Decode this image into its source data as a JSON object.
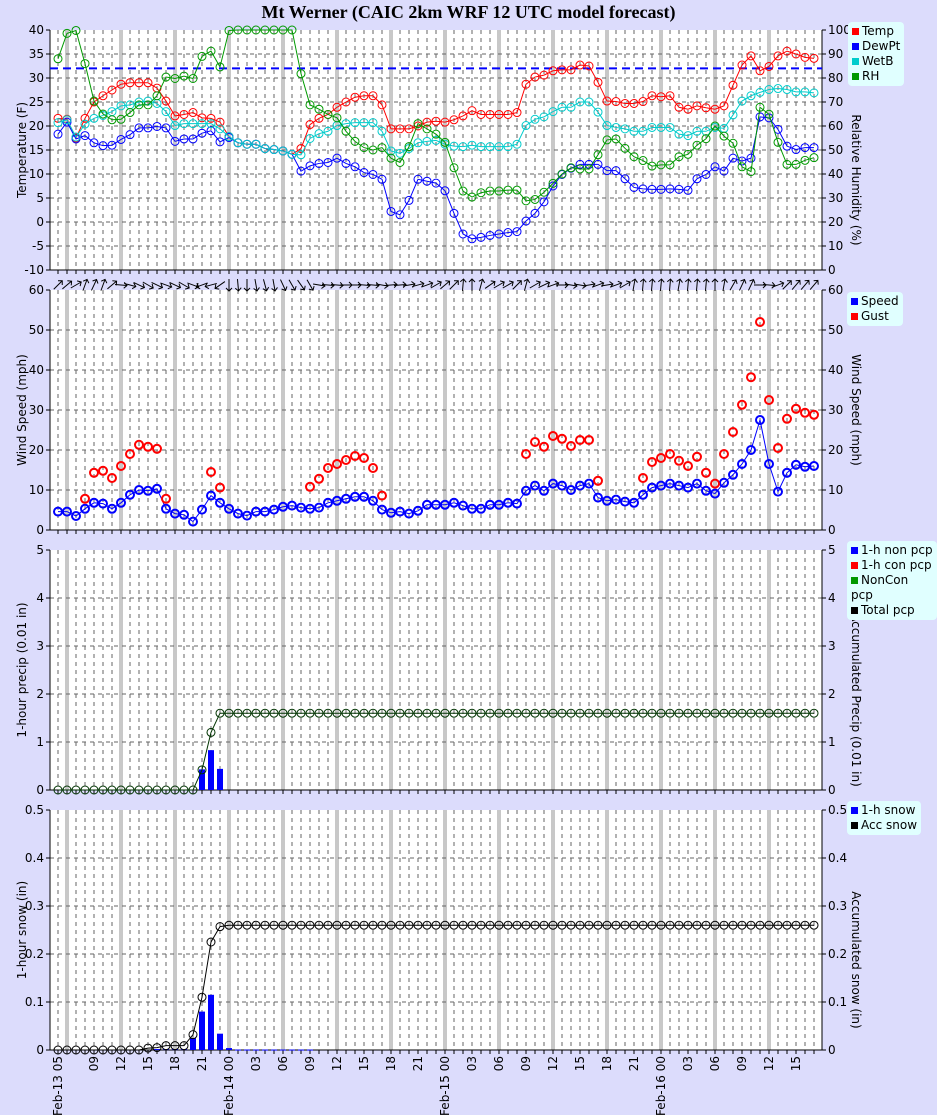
{
  "title": "Mt Werner (CAIC 2km WRF 12 UTC model forecast)",
  "colors": {
    "temp": "#ff0000",
    "dewpt": "#0000ff",
    "wetb": "#00cccc",
    "rh": "#009900",
    "speed": "#0000ff",
    "gust": "#ff0000",
    "non_pcp": "#0000ff",
    "con_pcp": "#ff0000",
    "noncon_pcp": "#009900",
    "total_pcp": "#000000",
    "snow": "#0000ff",
    "acc_snow": "#000000",
    "freezing_line": "#0000ff"
  },
  "x_tick_labels": [
    "Feb-13 05",
    "09",
    "12",
    "15",
    "18",
    "21",
    "Feb-14 00",
    "03",
    "06",
    "09",
    "12",
    "15",
    "18",
    "21",
    "Feb-15 00",
    "03",
    "06",
    "09",
    "12",
    "15",
    "18",
    "21",
    "Feb-16 00",
    "03",
    "06",
    "09",
    "12",
    "15"
  ],
  "chart_data": [
    {
      "type": "line",
      "ylabel": "Temperature (F)",
      "ylabel_right": "Relative Humidity (%)",
      "ylim": [
        -10,
        40
      ],
      "ylim_right": [
        0,
        100
      ],
      "yticks": [
        "40",
        "35",
        "30",
        "25",
        "20",
        "15",
        "10",
        "5",
        "0",
        "-5",
        "-10"
      ],
      "yticks_right": [
        "100",
        "90",
        "80",
        "70",
        "60",
        "50",
        "40",
        "30",
        "20",
        "10",
        "0"
      ],
      "freezing_line_F": 32,
      "legend": [
        "Temp",
        "DewPt",
        "WetB",
        "RH"
      ],
      "legend_position": "top-right outside",
      "series": [
        {
          "name": "Temp",
          "axis": "left",
          "values": [
            21.6,
            21.4,
            17.5,
            21.6,
            25,
            26.3,
            27.5,
            28.7,
            29,
            29,
            29,
            27.9,
            25.2,
            22.1,
            22.4,
            22.8,
            21.7,
            21.6,
            20.8,
            17.8,
            16.5,
            16.2,
            16.2,
            15.3,
            15.1,
            14.8,
            14.1,
            15.3,
            20.3,
            21.6,
            22.4,
            23.9,
            25,
            26,
            26.3,
            26.3,
            24.4,
            19.4,
            19.4,
            19.4,
            20,
            20.8,
            21,
            20.8,
            21.3,
            22.1,
            23.2,
            22.4,
            22.4,
            22.4,
            22.4,
            22.8,
            28.7,
            30.2,
            30.6,
            31.5,
            31.7,
            31.7,
            32.7,
            32.5,
            29.1,
            25.2,
            25.1,
            24.7,
            24.7,
            25.1,
            26.3,
            26.1,
            26.3,
            23.9,
            23.5,
            24.2,
            23.8,
            23.5,
            24.2,
            28.5,
            32.7,
            34.6,
            31.5,
            32.4,
            34.6,
            35.6,
            35,
            34.3,
            34.1
          ]
        },
        {
          "name": "DewPt",
          "axis": "left",
          "values": [
            18.3,
            20.8,
            17.3,
            18,
            16.5,
            15.9,
            16,
            17.2,
            18.2,
            19.6,
            19.6,
            19.9,
            19.6,
            16.8,
            17.3,
            17.3,
            18.5,
            19,
            16.7,
            17.6,
            16.5,
            16.2,
            16.2,
            15.3,
            15.1,
            14.8,
            14.1,
            10.6,
            11.7,
            12.2,
            12.4,
            13.3,
            12.2,
            11.5,
            10.3,
            9.9,
            8.9,
            2.2,
            1.5,
            4.5,
            8.9,
            8.5,
            8.1,
            6.5,
            1.8,
            -2.5,
            -3.5,
            -3.2,
            -2.8,
            -2.5,
            -2.2,
            -2,
            0.2,
            1.8,
            4.2,
            7.5,
            9.9,
            11.2,
            12,
            12,
            12,
            10.7,
            10.7,
            9,
            7.2,
            6.9,
            6.8,
            6.8,
            6.9,
            6.8,
            6.6,
            9,
            9.9,
            11.5,
            10.6,
            13.3,
            12.7,
            13.3,
            21.9,
            21.7,
            19.3,
            15.8,
            15.1,
            15.5,
            15.5
          ]
        },
        {
          "name": "WetB",
          "axis": "left",
          "values": [
            20.7,
            21.3,
            17.7,
            20.4,
            21.6,
            22.2,
            23,
            24.2,
            24.4,
            25,
            25.2,
            24.7,
            23,
            20.1,
            20.5,
            20.5,
            20.5,
            20.5,
            19.4,
            17.8,
            16.5,
            16.2,
            16.2,
            15.3,
            15.1,
            14.8,
            14.1,
            14,
            17.4,
            18.4,
            18.9,
            20.1,
            20.5,
            20.7,
            20.7,
            20.7,
            18.9,
            14.8,
            14.3,
            15.3,
            16.5,
            16.8,
            17,
            16.2,
            15.8,
            15.7,
            16,
            15.7,
            15.7,
            15.7,
            15.7,
            16.2,
            20.1,
            21.4,
            21.9,
            23,
            23.9,
            23.9,
            25,
            25,
            22.9,
            20.1,
            19.7,
            19.4,
            18.9,
            18.9,
            19.7,
            19.7,
            19.7,
            18.3,
            18,
            18.9,
            18.9,
            19.7,
            19.5,
            22.3,
            25.2,
            26.3,
            27,
            27.6,
            27.8,
            27.6,
            27.1,
            27.1,
            26.9
          ]
        },
        {
          "name": "RH",
          "axis": "right",
          "values": [
            88,
            98.6,
            99.8,
            86,
            70.4,
            65,
            62.6,
            62.8,
            65.6,
            68.8,
            68.8,
            72.6,
            80.4,
            79.8,
            80.8,
            79.8,
            89,
            91.2,
            84.6,
            99.8,
            100,
            100,
            100,
            100,
            100,
            100,
            100,
            81.8,
            68.8,
            67,
            64.8,
            63.4,
            57.8,
            53.6,
            51,
            50,
            51,
            46.6,
            44.8,
            51.4,
            61,
            58.8,
            56.6,
            53.2,
            42.6,
            32.9,
            30.4,
            32.2,
            32.9,
            32.9,
            33.3,
            33.3,
            28.8,
            29.4,
            32.4,
            36.1,
            40,
            42.6,
            42.1,
            42.1,
            48,
            54.2,
            54.6,
            50.7,
            47.2,
            45.6,
            43.3,
            43.8,
            43.8,
            47.2,
            48.2,
            52,
            54.7,
            60,
            55.8,
            52.8,
            43,
            41,
            67.8,
            64.9,
            53.2,
            44,
            44,
            45.7,
            46.8
          ]
        }
      ]
    },
    {
      "type": "scatter",
      "ylabel": "Wind Speed (mph)",
      "ylabel_right": "Wind Speed (mph)",
      "ylim": [
        0,
        60
      ],
      "yticks": [
        "60",
        "50",
        "40",
        "30",
        "20",
        "10",
        "0"
      ],
      "legend": [
        "Speed",
        "Gust"
      ],
      "legend_position": "top-right outside",
      "wind_direction_arrows_deg": [
        45,
        50,
        60,
        20,
        25,
        20,
        50,
        95,
        105,
        115,
        120,
        115,
        110,
        115,
        120,
        110,
        250,
        255,
        235,
        180,
        175,
        180,
        170,
        165,
        170,
        155,
        150,
        145,
        150,
        100,
        95,
        95,
        90,
        90,
        95,
        95,
        100,
        85,
        85,
        80,
        75,
        70,
        60,
        50,
        45,
        5,
        0,
        15,
        55,
        60,
        60,
        45,
        15,
        60,
        65,
        70,
        90,
        100,
        100,
        80,
        70,
        80,
        70,
        60,
        10,
        5,
        5,
        5,
        5,
        10,
        5,
        5,
        5,
        0,
        10,
        30,
        25,
        25,
        90,
        95,
        70,
        45,
        40,
        40,
        40
      ],
      "series": [
        {
          "name": "Speed",
          "values": [
            4.6,
            4.6,
            3.5,
            5.3,
            6.8,
            6.6,
            5.3,
            6.8,
            8.8,
            10,
            9.8,
            10.3,
            5.3,
            4.1,
            3.8,
            2.1,
            5.1,
            8.6,
            6.8,
            5.3,
            4.1,
            3.6,
            4.6,
            4.6,
            5.1,
            5.8,
            6.1,
            5.6,
            5.3,
            5.6,
            6.8,
            7.3,
            7.8,
            8.3,
            8.3,
            7.3,
            5.1,
            4.3,
            4.6,
            4.1,
            4.8,
            6.3,
            6.3,
            6.3,
            6.8,
            6.1,
            5.3,
            5.3,
            6.3,
            6.3,
            6.8,
            6.6,
            9.8,
            11.1,
            9.8,
            11.6,
            11.1,
            10,
            11.1,
            11.6,
            8.1,
            7.3,
            7.6,
            7.1,
            6.8,
            8.8,
            10.6,
            11.1,
            11.6,
            11.1,
            10.6,
            11.6,
            9.8,
            9.1,
            11.8,
            13.8,
            16.5,
            20,
            27.5,
            16.5,
            9.6,
            14.3,
            16.3,
            15.8,
            16
          ]
        },
        {
          "name": "Gust",
          "values": [
            null,
            null,
            null,
            7.8,
            14.3,
            14.8,
            13,
            16,
            19,
            21.3,
            20.8,
            20.3,
            7.8,
            null,
            null,
            null,
            null,
            14.5,
            10.6,
            null,
            null,
            null,
            null,
            null,
            null,
            null,
            null,
            null,
            10.8,
            12.8,
            15.5,
            16.5,
            17.5,
            18.5,
            18,
            15.5,
            8.6,
            null,
            null,
            null,
            null,
            null,
            null,
            null,
            null,
            null,
            null,
            null,
            null,
            null,
            null,
            null,
            19,
            22,
            20.8,
            23.5,
            22.8,
            21,
            22.5,
            22.5,
            12.3,
            null,
            null,
            null,
            null,
            13,
            17,
            18,
            19,
            17.3,
            16,
            18.3,
            14.3,
            11.6,
            19,
            24.5,
            31.3,
            38.2,
            52,
            32.5,
            20.5,
            27.8,
            30.3,
            29.3,
            28.8
          ]
        }
      ]
    },
    {
      "type": "bar",
      "ylabel": "1-hour precip (0.01 in)",
      "ylabel_right": "Accumulated Precip (0.01 in)",
      "ylim": [
        0,
        5
      ],
      "yticks": [
        "5",
        "4",
        "3",
        "2",
        "1",
        "0"
      ],
      "legend": [
        "1-h non pcp",
        "1-h con pcp",
        "NonCon pcp",
        "Total pcp"
      ],
      "legend_position": "top-right outside",
      "series": [
        {
          "name": "1-h non pcp",
          "values": [
            0,
            0,
            0,
            0,
            0,
            0,
            0,
            0,
            0,
            0,
            0,
            0,
            0,
            0,
            0,
            0,
            0.43,
            0.83,
            0.44,
            0,
            0,
            0,
            0,
            0,
            0,
            0,
            0,
            0,
            0,
            0,
            0,
            0,
            0,
            0,
            0,
            0,
            0,
            0,
            0,
            0,
            0,
            0,
            0,
            0,
            0,
            0,
            0,
            0,
            0,
            0,
            0,
            0,
            0,
            0,
            0,
            0,
            0,
            0,
            0,
            0,
            0,
            0,
            0,
            0,
            0,
            0,
            0,
            0,
            0,
            0,
            0,
            0,
            0,
            0,
            0,
            0,
            0,
            0,
            0,
            0,
            0,
            0,
            0,
            0,
            0
          ]
        },
        {
          "name": "Total pcp",
          "values": [
            0,
            0,
            0,
            0,
            0,
            0,
            0,
            0,
            0,
            0,
            0,
            0,
            0,
            0,
            0,
            0,
            0.42,
            1.2,
            1.6,
            1.6,
            1.6,
            1.6,
            1.6,
            1.6,
            1.6,
            1.6,
            1.6,
            1.6,
            1.6,
            1.6,
            1.6,
            1.6,
            1.6,
            1.6,
            1.6,
            1.6,
            1.6,
            1.6,
            1.6,
            1.6,
            1.6,
            1.6,
            1.6,
            1.6,
            1.6,
            1.6,
            1.6,
            1.6,
            1.6,
            1.6,
            1.6,
            1.6,
            1.6,
            1.6,
            1.6,
            1.6,
            1.6,
            1.6,
            1.6,
            1.6,
            1.6,
            1.6,
            1.6,
            1.6,
            1.6,
            1.6,
            1.6,
            1.6,
            1.6,
            1.6,
            1.6,
            1.6,
            1.6,
            1.6,
            1.6,
            1.6,
            1.6,
            1.6,
            1.6,
            1.6,
            1.6,
            1.6,
            1.6,
            1.6,
            1.6
          ]
        }
      ]
    },
    {
      "type": "bar",
      "ylabel": "1-hour snow (in)",
      "ylabel_right": "Accumulated snow (in)",
      "ylim": [
        0,
        0.5
      ],
      "yticks": [
        "0.5",
        "0.4",
        "0.3",
        "0.2",
        "0.1",
        "0"
      ],
      "legend": [
        "1-h snow",
        "Acc snow"
      ],
      "legend_position": "top-right outside",
      "series": [
        {
          "name": "1-h snow",
          "values": [
            0,
            0,
            0,
            0,
            0,
            0,
            0,
            0,
            0,
            0,
            0,
            0.002,
            0.002,
            0.002,
            0.002,
            0.025,
            0.08,
            0.115,
            0.034,
            0.004,
            0.001,
            0.001,
            0.001,
            0.001,
            0.001,
            0.001,
            0.001,
            0.001,
            0.001,
            0,
            0,
            0,
            0,
            0,
            0,
            0,
            0,
            0,
            0,
            0,
            0,
            0,
            0,
            0,
            0,
            0,
            0,
            0,
            0,
            0,
            0,
            0,
            0,
            0,
            0,
            0,
            0,
            0,
            0,
            0,
            0,
            0,
            0,
            0,
            0,
            0,
            0,
            0,
            0,
            0,
            0,
            0,
            0,
            0,
            0,
            0,
            0,
            0,
            0,
            0,
            0,
            0,
            0,
            0,
            0
          ]
        },
        {
          "name": "Acc snow",
          "values": [
            0,
            0,
            0,
            0,
            0,
            0,
            0,
            0,
            0,
            0,
            0.004,
            0.005,
            0.009,
            0.009,
            0.009,
            0.032,
            0.11,
            0.225,
            0.257,
            0.26,
            0.26,
            0.26,
            0.26,
            0.26,
            0.26,
            0.26,
            0.26,
            0.26,
            0.26,
            0.26,
            0.26,
            0.26,
            0.26,
            0.26,
            0.26,
            0.26,
            0.26,
            0.26,
            0.26,
            0.26,
            0.26,
            0.26,
            0.26,
            0.26,
            0.26,
            0.26,
            0.26,
            0.26,
            0.26,
            0.26,
            0.26,
            0.26,
            0.26,
            0.26,
            0.26,
            0.26,
            0.26,
            0.26,
            0.26,
            0.26,
            0.26,
            0.26,
            0.26,
            0.26,
            0.26,
            0.26,
            0.26,
            0.26,
            0.26,
            0.26,
            0.26,
            0.26,
            0.26,
            0.26,
            0.26,
            0.26,
            0.26,
            0.26,
            0.26,
            0.26,
            0.26,
            0.26,
            0.26,
            0.26,
            0.26
          ]
        }
      ]
    }
  ]
}
